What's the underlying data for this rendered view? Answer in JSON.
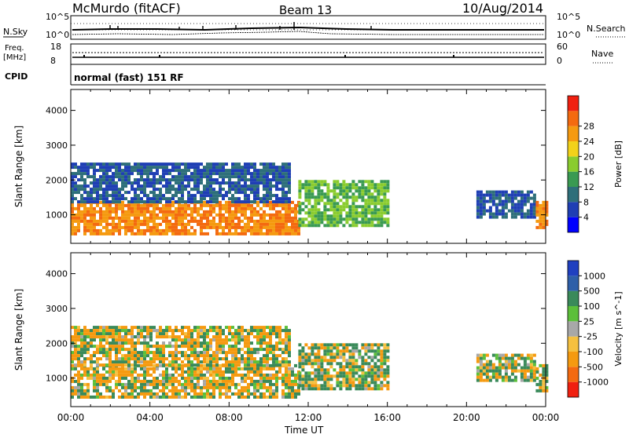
{
  "header": {
    "station": "McMurdo (fitACF)",
    "beam": "Beam 13",
    "date": "10/Aug/2014"
  },
  "summary_panels": {
    "nsky_label": "N.Sky",
    "nsky_ticks": [
      "10^5",
      "10^0"
    ],
    "nsearch_label": "N.Search",
    "nsearch_ticks": [
      "10^5",
      "10^0"
    ],
    "freq_label": "Freq.",
    "freq_unit": "[MHz]",
    "freq_ticks": [
      "18",
      "8"
    ],
    "nave_label": "Nave",
    "nave_ticks": [
      "60",
      "0"
    ],
    "cpid_label": "CPID",
    "cpid_value": "normal (fast) 151 RF"
  },
  "chart_data": [
    {
      "type": "heatmap",
      "name": "power-panel",
      "ylabel": "Slant Range [km]",
      "xlabel": "",
      "x_ticks": [
        "00:00",
        "04:00",
        "08:00",
        "12:00",
        "16:00",
        "20:00",
        "00:00"
      ],
      "x_range_hours": [
        0,
        24
      ],
      "y_ticks": [
        1000,
        2000,
        3000,
        4000
      ],
      "y_range": [
        180,
        4600
      ],
      "colorbar": {
        "label": "Power [dB]",
        "ticks": [
          "4",
          "8",
          "12",
          "16",
          "20",
          "24",
          "28"
        ],
        "colors": [
          "#0000ff",
          "#1f3fb4",
          "#2e6f7a",
          "#3a9a52",
          "#8acc2e",
          "#f2d21a",
          "#f59a10",
          "#f46a10",
          "#f02010"
        ]
      },
      "bands": [
        {
          "t0": 0.0,
          "t1": 11.5,
          "r0": 450,
          "r1": 1400,
          "value": 28
        },
        {
          "t0": 0.0,
          "t1": 11.0,
          "r0": 1400,
          "r1": 2500,
          "value": 8
        },
        {
          "t0": 11.5,
          "t1": 16.0,
          "r0": 700,
          "r1": 2000,
          "value": 16
        },
        {
          "t0": 20.5,
          "t1": 23.5,
          "r0": 900,
          "r1": 1700,
          "value": 8
        },
        {
          "t0": 23.5,
          "t1": 24.0,
          "r0": 650,
          "r1": 1400,
          "value": 28
        }
      ]
    },
    {
      "type": "heatmap",
      "name": "velocity-panel",
      "ylabel": "Slant Range [km]",
      "xlabel": "Time UT",
      "x_ticks": [
        "00:00",
        "04:00",
        "08:00",
        "12:00",
        "16:00",
        "20:00",
        "00:00"
      ],
      "x_range_hours": [
        0,
        24
      ],
      "y_ticks": [
        1000,
        2000,
        3000,
        4000
      ],
      "y_range": [
        180,
        4600
      ],
      "colorbar": {
        "label": "Velocity [m s^-1]",
        "ticks": [
          "1000",
          "500",
          "100",
          "25",
          "-25",
          "-100",
          "-500",
          "-1000"
        ],
        "colors": [
          "#2040c0",
          "#2e5fa8",
          "#3a8a5a",
          "#5cbf3a",
          "#a8a8a8",
          "#f5c040",
          "#f59a10",
          "#f46a10",
          "#f02010"
        ]
      },
      "bands": [
        {
          "t0": 0.0,
          "t1": 11.5,
          "r0": 450,
          "r1": 1400,
          "value": 100
        },
        {
          "t0": 0.0,
          "t1": 11.0,
          "r0": 1400,
          "r1": 2500,
          "value": 100
        },
        {
          "t0": 11.5,
          "t1": 16.0,
          "r0": 700,
          "r1": 2000,
          "value": -100
        },
        {
          "t0": 20.5,
          "t1": 23.5,
          "r0": 900,
          "r1": 1700,
          "value": -25
        },
        {
          "t0": 23.5,
          "t1": 24.0,
          "r0": 650,
          "r1": 1400,
          "value": -100
        }
      ]
    }
  ]
}
